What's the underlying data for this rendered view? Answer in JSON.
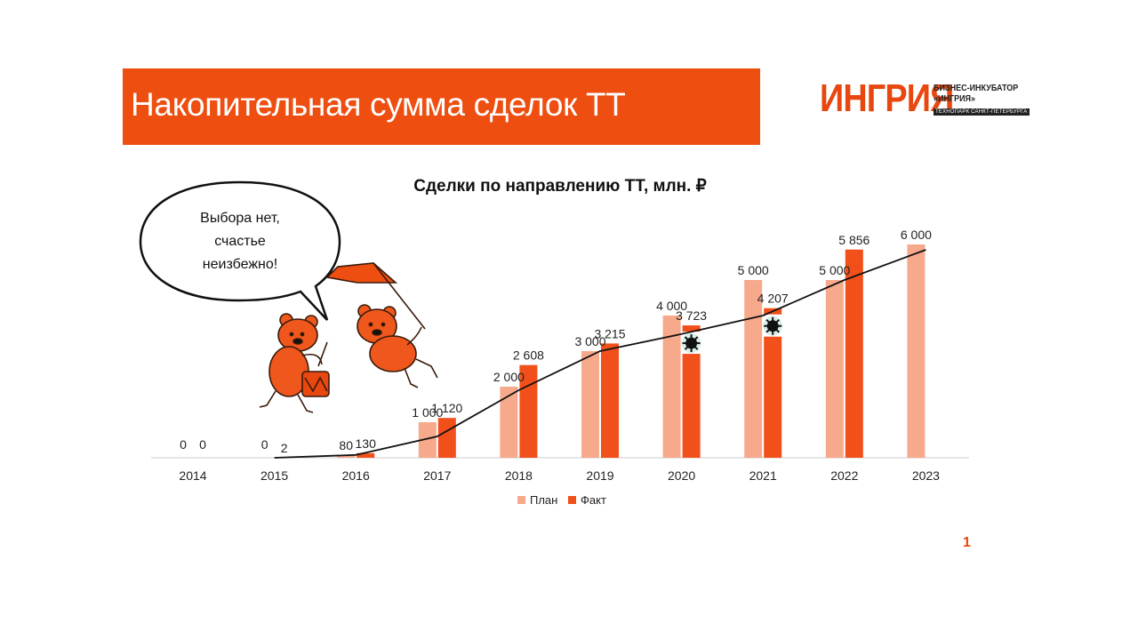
{
  "slide": {
    "title": "Накопительная сумма сделок ТТ",
    "page_number": "1",
    "speech_bubble": [
      "Выбора нет,",
      "счастье",
      "неизбежно!"
    ]
  },
  "logo": {
    "main": "ИНГРИЯ",
    "line1": "БИЗНЕС-ИНКУБАТОР",
    "line2": "«ИНГРИЯ»",
    "line3": "ТЕХНОПАРК САНКТ-ПЕТЕРБУРГА"
  },
  "colors": {
    "accent": "#ee4e10",
    "plan": "#f7a98c",
    "fact": "#f1501a",
    "trend": "#111111"
  },
  "chart_data": {
    "type": "bar",
    "title": "Сделки по направлению ТТ, млн. ₽",
    "categories": [
      "2014",
      "2015",
      "2016",
      "2017",
      "2018",
      "2019",
      "2020",
      "2021",
      "2022",
      "2023"
    ],
    "series": [
      {
        "name": "План",
        "values": [
          0,
          0,
          80,
          1000,
          2000,
          3000,
          4000,
          5000,
          5000,
          6000
        ],
        "labels": [
          "0",
          "0",
          "80",
          "1 000",
          "2 000",
          "3 000",
          "4 000",
          "5 000",
          "5 000",
          "6 000"
        ]
      },
      {
        "name": "Факт",
        "values": [
          0,
          2,
          130,
          1120,
          2608,
          3215,
          3723,
          4207,
          5856,
          null
        ],
        "labels": [
          "0",
          "2",
          "130",
          "1 120",
          "2 608",
          "3 215",
          "3 723",
          "4 207",
          "5 856",
          ""
        ]
      }
    ],
    "trendline": {
      "type": "line",
      "x": [
        "2015",
        "2016",
        "2017",
        "2018",
        "2019",
        "2020",
        "2021",
        "2022",
        "2023"
      ],
      "values": [
        0,
        80,
        600,
        1900,
        3000,
        3480,
        4000,
        5000,
        5850
      ]
    },
    "legend": "bottom",
    "grid": false,
    "ylim": [
      0,
      6300
    ]
  }
}
